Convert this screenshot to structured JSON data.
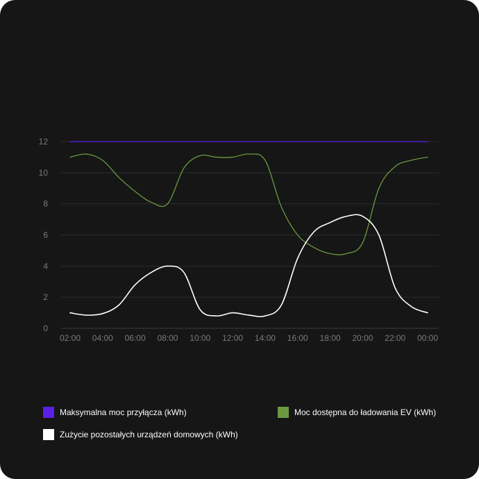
{
  "chart_data": {
    "type": "line",
    "title": "",
    "xlabel": "",
    "ylabel": "",
    "x": [
      "02:00",
      "03:00",
      "04:00",
      "05:00",
      "06:00",
      "07:00",
      "08:00",
      "09:00",
      "10:00",
      "11:00",
      "12:00",
      "13:00",
      "14:00",
      "15:00",
      "16:00",
      "17:00",
      "18:00",
      "19:00",
      "20:00",
      "21:00",
      "22:00",
      "23:00",
      "00:00"
    ],
    "x_tick_labels": [
      "02:00",
      "04:00",
      "06:00",
      "08:00",
      "10:00",
      "12:00",
      "14:00",
      "16:00",
      "18:00",
      "20:00",
      "22:00",
      "00:00"
    ],
    "ylim": [
      0,
      12
    ],
    "y_ticks": [
      0,
      2,
      4,
      6,
      8,
      10,
      12
    ],
    "grid": true,
    "legend_position": "bottom",
    "series": [
      {
        "name": "Maksymalna moc przyłącza (kWh)",
        "color": "#5b1fe6",
        "values": [
          12,
          12,
          12,
          12,
          12,
          12,
          12,
          12,
          12,
          12,
          12,
          12,
          12,
          12,
          12,
          12,
          12,
          12,
          12,
          12,
          12,
          12,
          12
        ]
      },
      {
        "name": "Moc dostępna do ładowania EV (kWh)",
        "color": "#6a9a3f",
        "values": [
          11,
          11.2,
          10.8,
          9.7,
          8.8,
          8.1,
          8.0,
          10.3,
          11.1,
          11.0,
          11.0,
          11.2,
          10.8,
          7.8,
          6.0,
          5.2,
          4.8,
          4.8,
          5.5,
          9.0,
          10.4,
          10.8,
          11.0
        ]
      },
      {
        "name": "Zużycie pozostałych urządzeń domowych (kWh)",
        "color": "#ffffff",
        "values": [
          1.0,
          0.85,
          0.95,
          1.5,
          2.8,
          3.6,
          4.0,
          3.6,
          1.2,
          0.8,
          1.0,
          0.85,
          0.8,
          1.5,
          4.5,
          6.2,
          6.8,
          7.2,
          7.2,
          6.0,
          2.6,
          1.4,
          1.0
        ]
      }
    ]
  }
}
